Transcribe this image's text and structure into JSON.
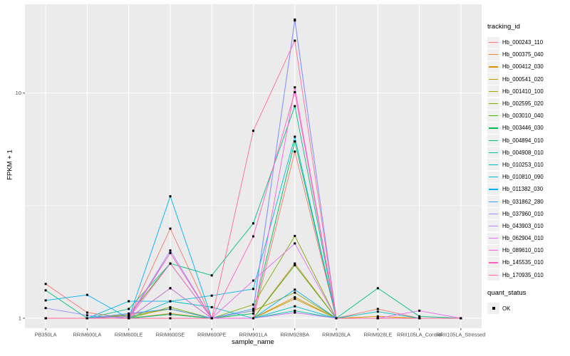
{
  "chart_data": {
    "type": "line",
    "title": "",
    "xlabel": "sample_name",
    "ylabel": "FPKM + 1",
    "y_scale": "log10",
    "ylim": [
      0.903,
      24.8
    ],
    "y_ticks": [
      1,
      10
    ],
    "y_tick_labels": [
      "1",
      "10"
    ],
    "y_minor_ticks": [
      3.162
    ],
    "grid": "on",
    "panel_bg": "#EBEBEB",
    "grid_color": "#FFFFFF",
    "point_color": "#000000",
    "point_shape": "square",
    "legend_position": "right",
    "categories": [
      "PB350LA",
      "RRIM600LA",
      "RRIM600LE",
      "RRIM600SE",
      "RRIM600PE",
      "RRIM901LA",
      "RRIM928BA",
      "RRIM928LA",
      "RRIM928LE",
      "RRII105LA_Control",
      "RRII105LA_Stressed"
    ],
    "series": [
      {
        "name": "Hb_000243_110",
        "color": "#F8766D",
        "values": [
          1.42,
          1.06,
          1.0,
          2.5,
          1.0,
          1.0,
          5.5,
          1.0,
          1.1,
          1.0,
          1.0
        ]
      },
      {
        "name": "Hb_000375_040",
        "color": "#EA8331",
        "values": [
          1.0,
          1.0,
          1.04,
          1.1,
          1.0,
          1.0,
          1.75,
          1.0,
          1.0,
          1.0,
          1.0
        ]
      },
      {
        "name": "Hb_000412_030",
        "color": "#D89000",
        "values": [
          1.0,
          1.0,
          1.0,
          1.05,
          1.0,
          1.0,
          1.24,
          1.0,
          1.02,
          1.0,
          1.0
        ]
      },
      {
        "name": "Hb_000541_020",
        "color": "#C09B00",
        "values": [
          1.0,
          1.0,
          1.02,
          1.1,
          1.0,
          1.0,
          1.22,
          1.0,
          1.0,
          1.0,
          1.0
        ]
      },
      {
        "name": "Hb_001410_100",
        "color": "#A3A500",
        "values": [
          1.0,
          1.0,
          1.0,
          1.04,
          1.0,
          1.08,
          1.3,
          1.0,
          1.0,
          1.0,
          1.0
        ]
      },
      {
        "name": "Hb_002595_020",
        "color": "#7CAE00",
        "values": [
          1.0,
          1.0,
          1.0,
          1.12,
          1.0,
          1.15,
          2.32,
          1.0,
          1.0,
          1.0,
          1.0
        ]
      },
      {
        "name": "Hb_003010_040",
        "color": "#39B600",
        "values": [
          1.0,
          1.0,
          1.03,
          1.75,
          1.0,
          1.0,
          1.72,
          1.0,
          1.0,
          1.0,
          1.0
        ]
      },
      {
        "name": "Hb_003446_030",
        "color": "#00BB4E",
        "values": [
          1.0,
          1.0,
          1.0,
          1.36,
          1.0,
          1.05,
          6.1,
          1.0,
          1.0,
          1.0,
          1.0
        ]
      },
      {
        "name": "Hb_004894_010",
        "color": "#00BF7D",
        "values": [
          1.33,
          1.0,
          1.1,
          1.75,
          1.55,
          2.64,
          8.75,
          1.0,
          1.36,
          1.02,
          1.0
        ]
      },
      {
        "name": "Hb_004908_010",
        "color": "#00C1A3",
        "values": [
          1.0,
          1.0,
          1.0,
          1.04,
          1.0,
          1.0,
          1.08,
          1.0,
          1.0,
          1.0,
          1.0
        ]
      },
      {
        "name": "Hb_010253_010",
        "color": "#00BFC4",
        "values": [
          1.0,
          1.0,
          1.0,
          1.19,
          1.12,
          1.0,
          1.13,
          1.0,
          1.07,
          1.0,
          1.0
        ]
      },
      {
        "name": "Hb_010810_090",
        "color": "#00BAE0",
        "values": [
          1.0,
          1.0,
          1.19,
          1.19,
          1.26,
          1.35,
          6.4,
          1.0,
          1.0,
          1.0,
          1.0
        ]
      },
      {
        "name": "Hb_011382_030",
        "color": "#00B0F6",
        "values": [
          1.2,
          1.27,
          1.0,
          3.48,
          1.0,
          1.0,
          1.34,
          1.0,
          1.0,
          1.0,
          1.0
        ]
      },
      {
        "name": "Hb_031862_280",
        "color": "#35A2FF",
        "values": [
          1.0,
          1.0,
          1.05,
          1.1,
          1.0,
          1.1,
          21.0,
          1.0,
          1.0,
          1.0,
          1.0
        ]
      },
      {
        "name": "Hb_037960_010",
        "color": "#9590FF",
        "values": [
          1.11,
          1.03,
          1.0,
          2.0,
          1.0,
          1.08,
          21.2,
          1.0,
          1.0,
          1.0,
          1.0
        ]
      },
      {
        "name": "Hb_043903_010",
        "color": "#C77CFF",
        "values": [
          1.0,
          1.0,
          1.02,
          1.95,
          1.0,
          1.0,
          1.06,
          1.0,
          1.0,
          1.0,
          1.0
        ]
      },
      {
        "name": "Hb_062904_010",
        "color": "#E76BF3",
        "values": [
          1.0,
          1.0,
          1.0,
          1.36,
          1.0,
          1.47,
          2.15,
          1.0,
          1.0,
          1.08,
          1.0
        ]
      },
      {
        "name": "Hb_089610_010",
        "color": "#FA62DB",
        "values": [
          1.0,
          1.0,
          1.0,
          1.75,
          1.0,
          1.0,
          10.6,
          1.0,
          1.0,
          1.0,
          1.0
        ]
      },
      {
        "name": "Hb_145535_010",
        "color": "#FF62BC",
        "values": [
          1.0,
          1.0,
          1.0,
          1.95,
          1.0,
          2.31,
          10.1,
          1.0,
          1.0,
          1.0,
          1.0
        ]
      },
      {
        "name": "Hb_170935_010",
        "color": "#FF6A98",
        "values": [
          1.0,
          1.0,
          1.0,
          1.0,
          1.0,
          6.8,
          17.1,
          1.0,
          1.0,
          1.0,
          1.0
        ]
      }
    ],
    "legend": {
      "tracking_title": "tracking_id",
      "quant_title": "quant_status",
      "quant_items": [
        "OK"
      ]
    }
  }
}
